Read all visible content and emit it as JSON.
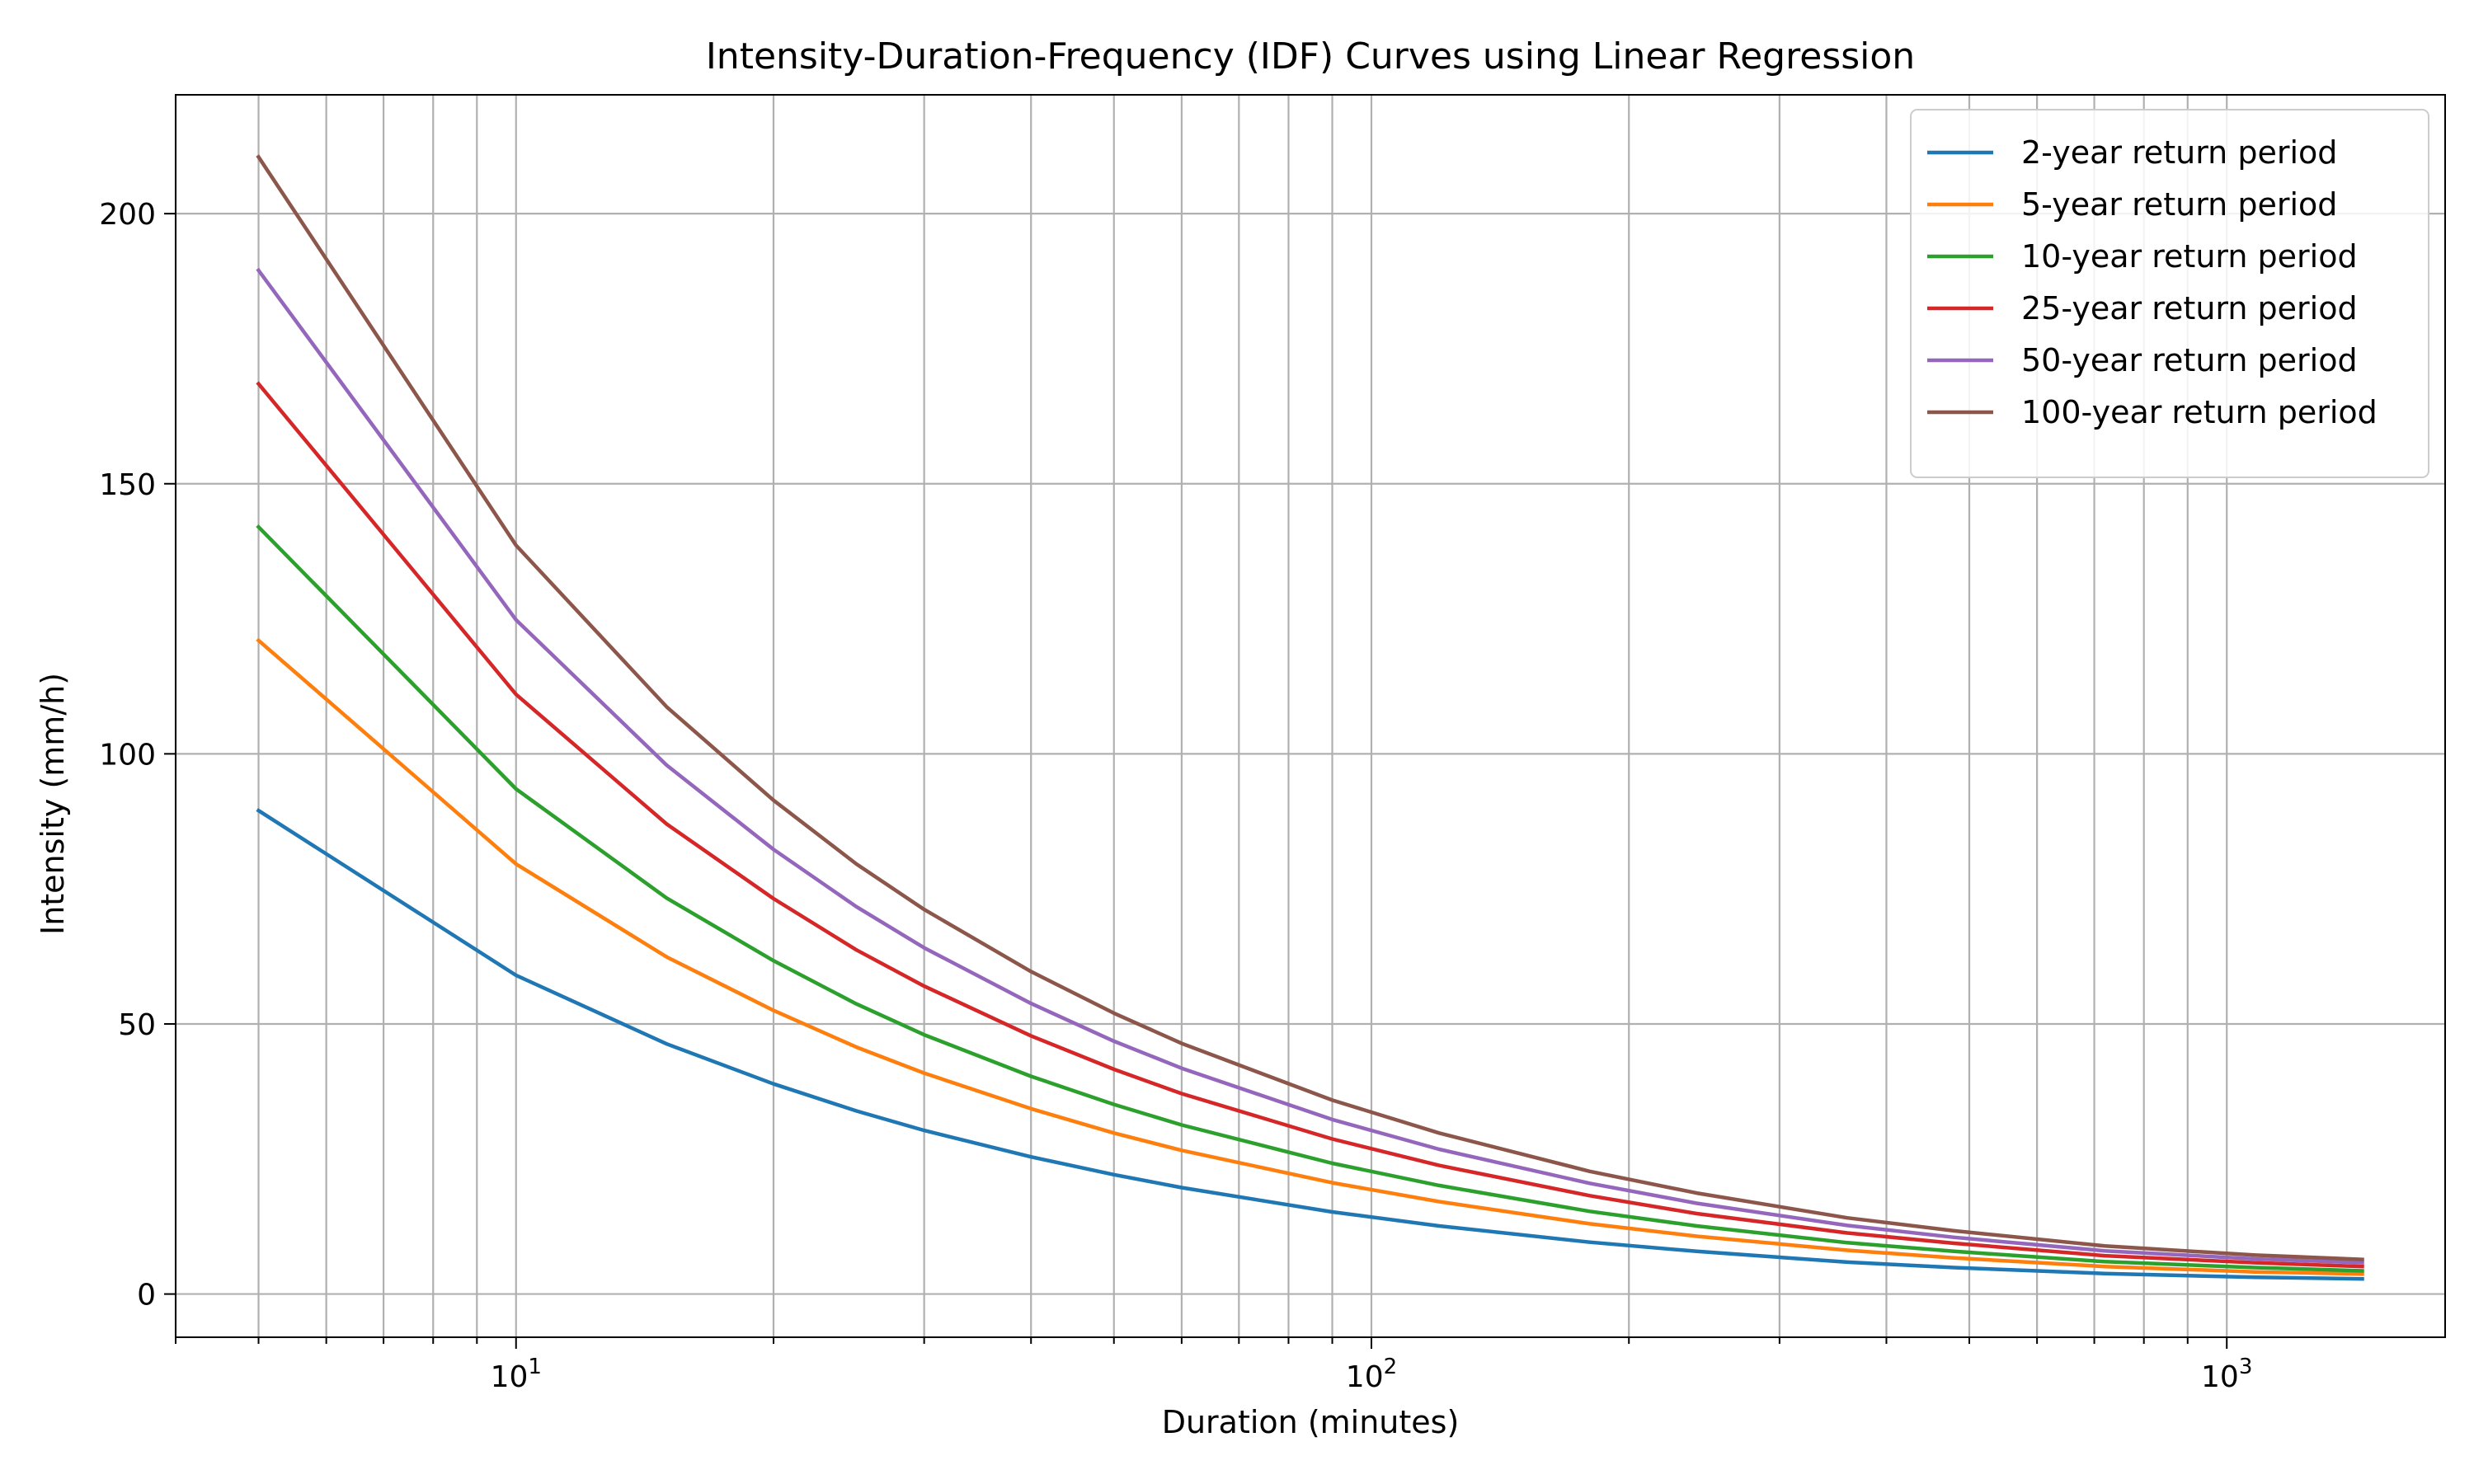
{
  "chart_data": {
    "type": "line",
    "title": "Intensity-Duration-Frequency (IDF) Curves using Linear Regression",
    "xlabel": "Duration (minutes)",
    "ylabel": "Intensity (mm/h)",
    "xscale": "log",
    "xlim": [
      4,
      1800
    ],
    "ylim": [
      -8,
      222
    ],
    "grid": true,
    "grid_which": "both",
    "legend_position": "top-right",
    "x": [
      5,
      10,
      15,
      20,
      25,
      30,
      40,
      50,
      60,
      90,
      120,
      180,
      240,
      360,
      480,
      720,
      1080,
      1440
    ],
    "x_ticks_major": [
      10,
      100,
      1000
    ],
    "x_tick_labels": [
      "10",
      "10",
      "10"
    ],
    "x_tick_exponents": [
      "1",
      "2",
      "3"
    ],
    "y_ticks": [
      0,
      50,
      100,
      150,
      200
    ],
    "y_tick_labels": [
      "0",
      "50",
      "100",
      "150",
      "200"
    ],
    "series": [
      {
        "name": "2-year return period",
        "color": "#1f77b4",
        "values": [
          89.5,
          59.0,
          46.3,
          38.9,
          33.9,
          30.3,
          25.4,
          22.1,
          19.7,
          15.2,
          12.6,
          9.6,
          7.9,
          5.9,
          4.9,
          3.8,
          3.1,
          2.8
        ]
      },
      {
        "name": "5-year return period",
        "color": "#ff7f0e",
        "values": [
          121.0,
          79.6,
          62.4,
          52.5,
          45.7,
          40.9,
          34.3,
          29.8,
          26.6,
          20.6,
          17.1,
          13.0,
          10.7,
          8.1,
          6.7,
          5.1,
          4.1,
          3.7
        ]
      },
      {
        "name": "10-year return period",
        "color": "#2ca02c",
        "values": [
          142.0,
          93.5,
          73.3,
          61.7,
          53.7,
          48.0,
          40.3,
          35.1,
          31.3,
          24.2,
          20.1,
          15.3,
          12.6,
          9.5,
          7.9,
          6.0,
          4.9,
          4.3
        ]
      },
      {
        "name": "25-year return period",
        "color": "#d62728",
        "values": [
          168.5,
          111.0,
          87.0,
          73.2,
          63.7,
          57.0,
          47.8,
          41.6,
          37.1,
          28.7,
          23.8,
          18.2,
          14.9,
          11.3,
          9.4,
          7.1,
          5.8,
          5.1
        ]
      },
      {
        "name": "50-year return period",
        "color": "#9467bd",
        "values": [
          189.5,
          124.8,
          97.9,
          82.3,
          71.7,
          64.1,
          53.8,
          46.8,
          41.8,
          32.3,
          26.8,
          20.5,
          16.8,
          12.7,
          10.5,
          8.0,
          6.5,
          5.8
        ]
      },
      {
        "name": "100-year return period",
        "color": "#8c564b",
        "values": [
          210.5,
          138.6,
          108.7,
          91.4,
          79.6,
          71.2,
          59.7,
          52.0,
          46.4,
          35.9,
          29.8,
          22.7,
          18.7,
          14.1,
          11.7,
          8.9,
          7.2,
          6.4
        ]
      }
    ]
  }
}
